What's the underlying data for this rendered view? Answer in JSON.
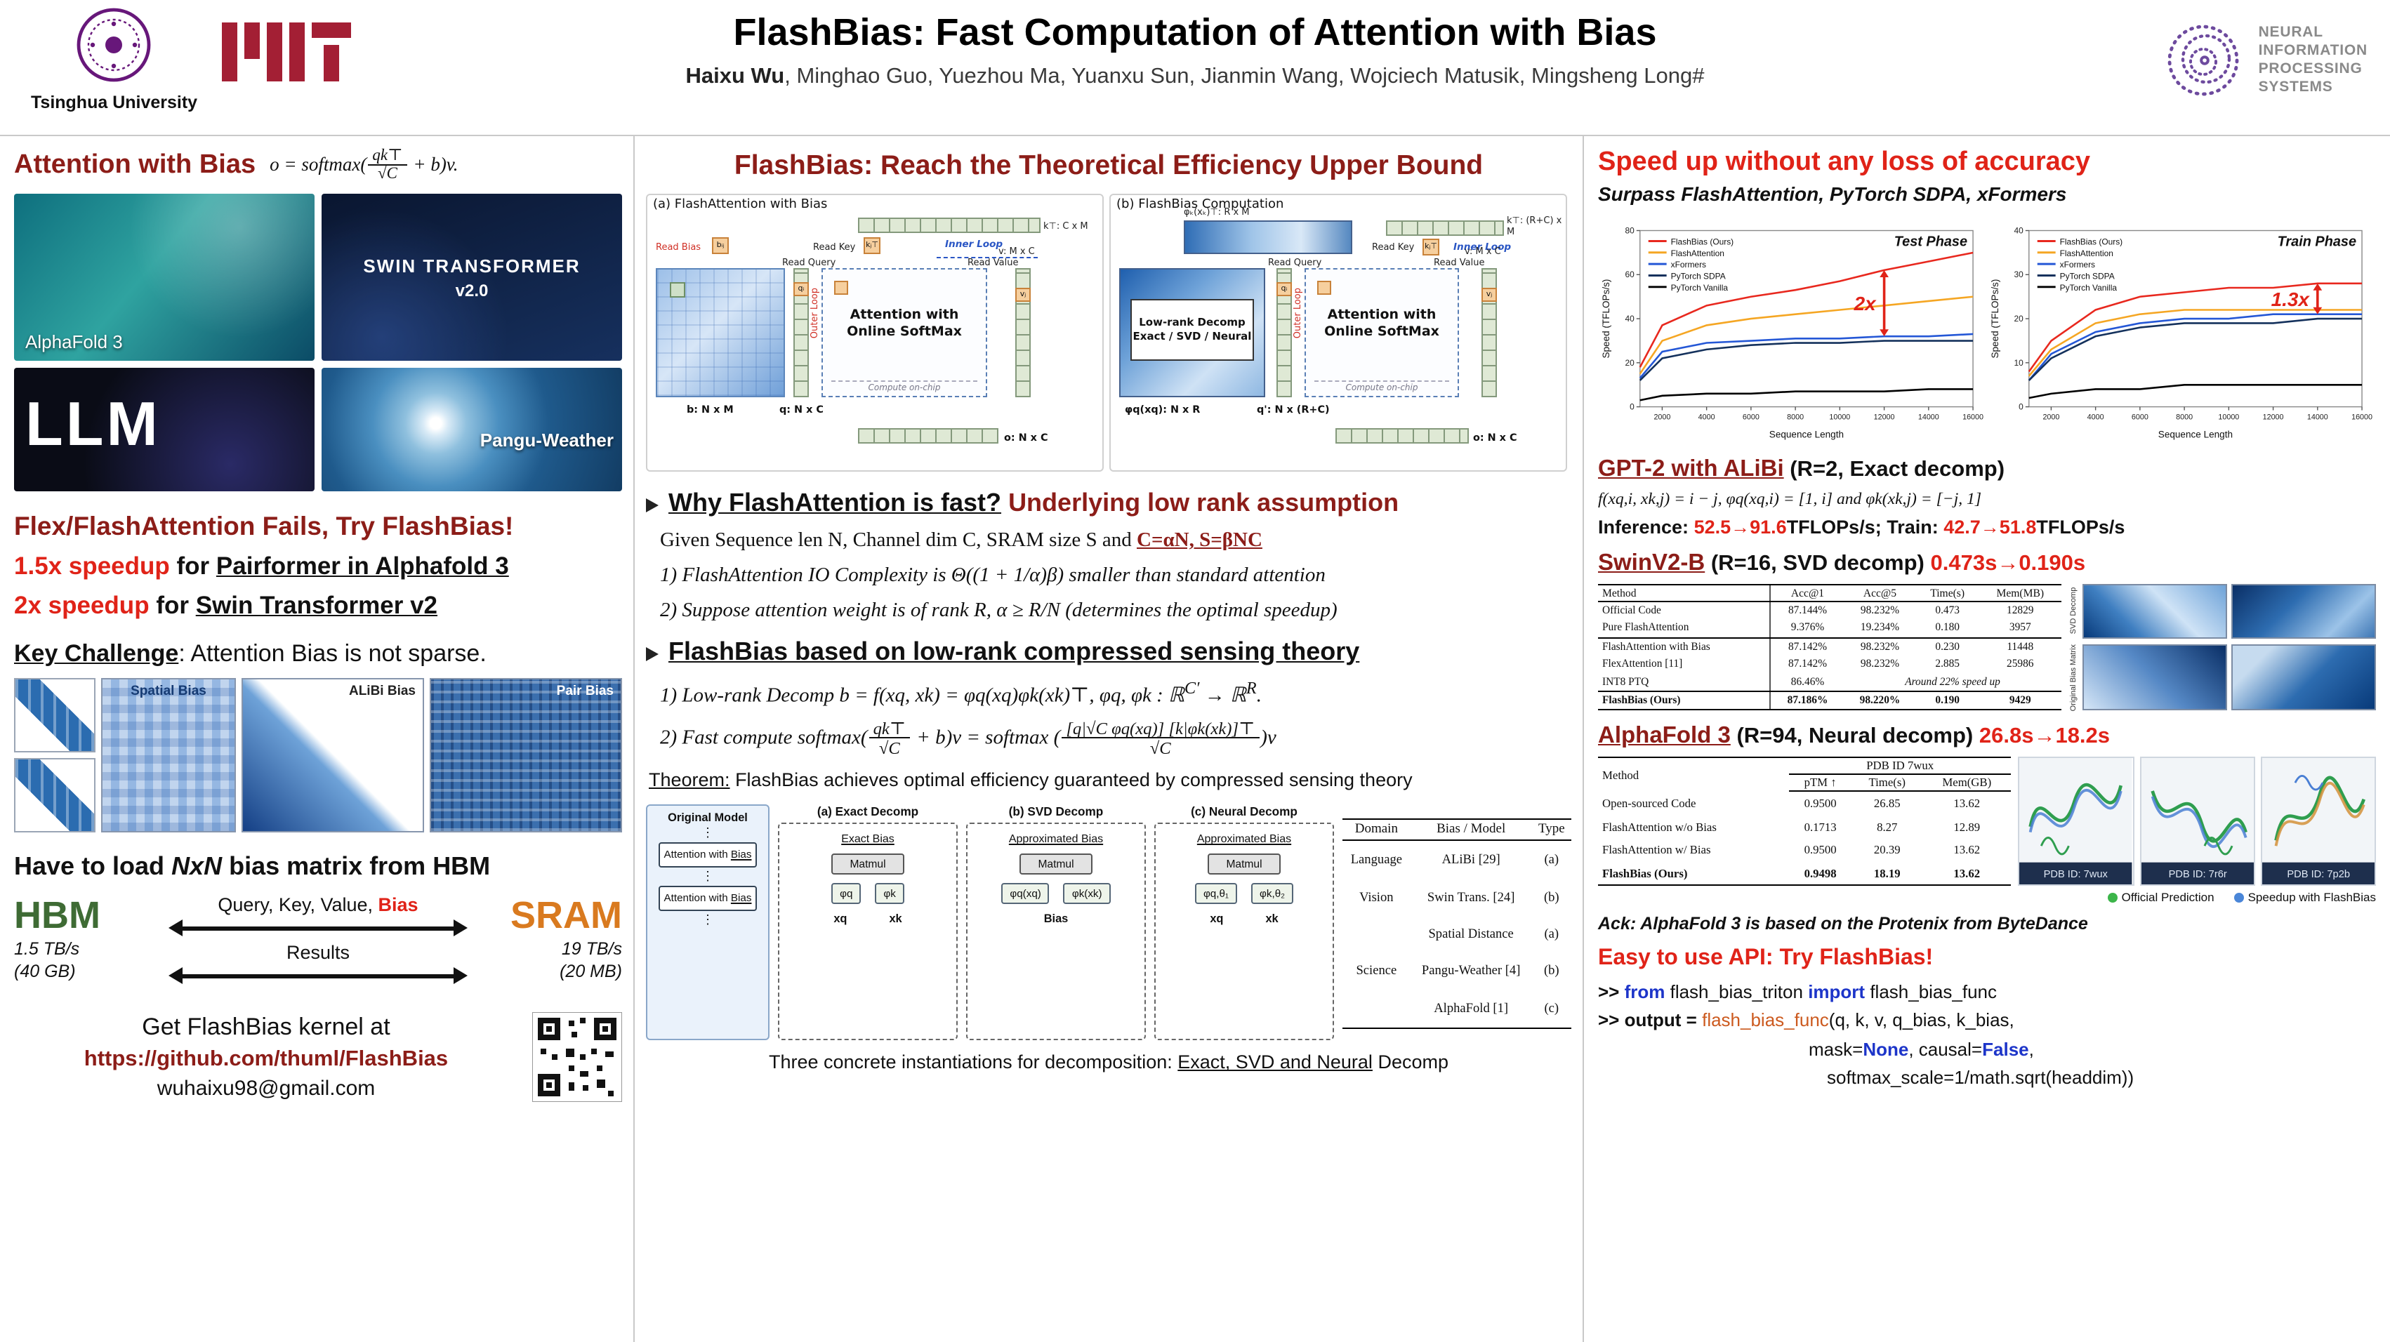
{
  "colors": {
    "maroon": "#8C1D18",
    "red": "#E02318",
    "keyword_blue": "#1D35C9",
    "function_orange": "#CC5A1F",
    "hbm_green": "#3E6B34",
    "sram_orange": "#D97A1F",
    "matrix_blue": "#2B6CB0"
  },
  "header": {
    "title": "FlashBias: Fast Computation of Attention with Bias",
    "author_lead": "Haixu Wu",
    "author_rest": ", Minghao Guo, Yuezhou Ma, Yuanxu Sun, Jianmin Wang, Wojciech Matusik, Mingsheng Long#",
    "tsinghua_label": "Tsinghua University",
    "neurips_lines": [
      "NEURAL",
      "INFORMATION",
      "PROCESSING",
      "SYSTEMS"
    ]
  },
  "left": {
    "sec1_title": "Attention with Bias",
    "formula": {
      "pre": "o = softmax(",
      "num": "qk⊤",
      "den": "√C",
      "post": " + b)v."
    },
    "tiles": {
      "alphafold": "AlphaFold 3",
      "swin1": "SWIN TRANSFORMER",
      "swin2": "v2.0",
      "llm": "LLM",
      "pangu": "Pangu-Weather"
    },
    "fails": "Flex/FlashAttention Fails, Try FlashBias!",
    "speedup1": {
      "lead": "1.5x speedup",
      "mid": " for ",
      "target": "Pairformer in Alphafold 3"
    },
    "speedup2": {
      "lead": "2x speedup",
      "mid": " for ",
      "target": "Swin Transformer v2"
    },
    "challenge": {
      "lead": "Key Challenge",
      "rest": ": Attention Bias is not sparse."
    },
    "bias_labels": {
      "spatial": "Spatial Bias",
      "alibi": "ALiBi Bias",
      "pair": "Pair Bias"
    },
    "load_line": {
      "pre": "Have to load ",
      "em": "NxN",
      "post": " bias matrix from HBM"
    },
    "hbm": {
      "name": "HBM",
      "speed": "1.5 TB/s",
      "size": "(40 GB)"
    },
    "sram": {
      "name": "SRAM",
      "speed": "19 TB/s",
      "size": "(20 MB)"
    },
    "transfer": {
      "pre": "Query, Key, Value, ",
      "bias": "Bias",
      "results": "Results"
    },
    "kernel": {
      "line": "Get FlashBias kernel at",
      "url": "https://github.com/thuml/FlashBias",
      "email": "wuhaixu98@gmail.com"
    }
  },
  "middle": {
    "heading": "FlashBias: Reach the Theoretical Efficiency Upper Bound",
    "diag_a": {
      "title": "(a) FlashAttention with Bias",
      "read_bias": "Read Bias",
      "bij": "bᵢⱼ",
      "read_key": "Read Key",
      "kj": "kⱼ⊤",
      "k_label": "k⊤: C x M",
      "inner_loop": "Inner Loop",
      "v_label": "v: M x C",
      "qi": "qᵢ",
      "read_query": "Read Query",
      "attn": "Attention with Online SoftMax",
      "read_value": "Read Value",
      "vj": "vⱼ",
      "outer_loop": "Outer Loop",
      "compute": "Compute on-chip",
      "b_label": "b: N x M",
      "q_label": "q: N x C",
      "o_label": "o: N x C"
    },
    "diag_b": {
      "title": "(b) FlashBias Computation",
      "phik_label": "φₖ(xₖ)⊤: R x M",
      "k_label": "k⊤: (R+C) x M",
      "read_key": "Read Key",
      "kj": "kⱼ⊤",
      "inner_loop": "Inner Loop",
      "v_label": "v: M x C",
      "decomp1": "Low-rank Decomp",
      "decomp2": "Exact / SVD / Neural",
      "qi": "qᵢ",
      "read_query": "Read Query",
      "attn": "Attention with Online SoftMax",
      "read_value": "Read Value",
      "vj": "vⱼ",
      "outer_loop": "Outer Loop",
      "compute": "Compute on-chip",
      "phiq_label": "φq(xq): N x R",
      "q_label": "q': N x (R+C)",
      "o_label": "o: N x C"
    },
    "why": {
      "title_black": "Why FlashAttention is fast?",
      "title_red": "Underlying low rank assumption",
      "given_pre": "Given Sequence len N, Channel dim C, SRAM size S and ",
      "given_u": "C=αN, S=βNC",
      "p1": "1) FlashAttention IO Complexity is Θ((1 + 1/α)β) smaller than standard attention",
      "p2": "2) Suppose attention weight is of rank R, α ≥ R/N (determines the optimal speedup)"
    },
    "theory": {
      "title": "FlashBias based on low-rank compressed sensing theory",
      "l1_pre": "1) Low-rank Decomp  b = f(xq, xk) = φq(xq)φk(xk)⊤,   φq, φk : ℝ",
      "l1_sup1": "C′",
      "l1_mid": " → ℝ",
      "l1_sup2": "R",
      "l1_end": ".",
      "l2_lead": "2) Fast compute   softmax(",
      "l2_num1": "qk⊤",
      "l2_den1": "√C",
      "l2_mid": " + b)v = softmax (",
      "l2_num2": "[q|√C φq(xq)] [k|φk(xk)]⊤",
      "l2_den2": "√C",
      "l2_end": ")v",
      "theorem_lead": "Theorem:",
      "theorem_rest": " FlashBias achieves optimal efficiency guaranteed by compressed sensing theory"
    },
    "decomp": {
      "original_label": "Original Model",
      "dots": "⋮",
      "attn_pre": "Attention with ",
      "attn_u": "Bias",
      "a": {
        "title": "(a) Exact Decomp",
        "bias": "Exact Bias",
        "matmul": "Matmul",
        "op1": "φq",
        "op2": "φk",
        "in1": "xq",
        "in2": "xk"
      },
      "b": {
        "title": "(b) SVD Decomp",
        "bias": "Approximated Bias",
        "matmul": "Matmul",
        "op1": "φq(xq)",
        "op2": "φk(xk)",
        "in1": "Bias"
      },
      "c": {
        "title": "(c) Neural Decomp",
        "bias": "Approximated Bias",
        "matmul": "Matmul",
        "op1": "φq,θ₁",
        "op2": "φk,θ₂",
        "in1": "xq",
        "in2": "xk"
      },
      "table": {
        "h": [
          "Domain",
          "Bias / Model",
          "Type"
        ],
        "rows": [
          [
            "Language",
            "ALiBi [29]",
            "(a)"
          ],
          [
            "Vision",
            "Swin Trans. [24]",
            "(b)"
          ],
          [
            "",
            "Spatial Distance",
            "(a)"
          ],
          [
            "Science",
            "Pangu-Weather [4]",
            "(b)"
          ],
          [
            "",
            "AlphaFold [1]",
            "(c)"
          ]
        ]
      },
      "caption": {
        "pre": "Three concrete instantiations for decomposition: ",
        "u": "Exact, SVD and Neural",
        "post": " Decomp"
      }
    }
  },
  "right": {
    "speed_title": "Speed up without any loss of accuracy",
    "speed_sub": "Surpass FlashAttention, PyTorch SDPA, xFormers",
    "gpt2": {
      "title_u": "GPT-2 with ALiBi",
      "title_rest": " (R=2, Exact decomp)",
      "formula": "f(xq,i, xk,j) = i − j,   φq(xq,i) = [1, i] and φk(xk,j) = [−j, 1]",
      "inf_label": "Inference: ",
      "inf_val": "52.5→91.6",
      "inf_unit": "TFLOPs/s; ",
      "train_label": "Train: ",
      "train_val": "42.7→51.8",
      "train_unit": "TFLOPs/s"
    },
    "swin": {
      "title_u": "SwinV2-B",
      "title_mid": " (R=16, SVD decomp) ",
      "title_red": "0.473s→0.190s",
      "table": {
        "h": [
          "Method",
          "Acc@1",
          "Acc@5",
          "Time(s)",
          "Mem(MB)"
        ],
        "rows": [
          [
            "Official Code",
            "87.144%",
            "98.232%",
            "0.473",
            "12829"
          ],
          [
            "Pure FlashAttention",
            "9.376%",
            "19.234%",
            "0.180",
            "3957"
          ],
          [
            "FlashAttention with Bias",
            "87.142%",
            "98.232%",
            "0.230",
            "11448"
          ],
          [
            "FlexAttention [11]",
            "87.142%",
            "98.232%",
            "2.885",
            "25986"
          ],
          [
            "INT8 PTQ",
            "86.46%",
            "Around 22% speed up",
            "",
            ""
          ],
          [
            "FlashBias (Ours)",
            "87.186%",
            "98.220%",
            "0.190",
            "9429"
          ]
        ]
      },
      "matrix_label_top": "SVD Decomp",
      "matrix_label_bottom": "Original Bias Matrix"
    },
    "af3": {
      "title_u": "AlphaFold 3",
      "title_mid": " (R=94, Neural decomp) ",
      "title_red": "26.8s→18.2s",
      "table": {
        "method_h": "Method",
        "group_h": "PDB ID 7wux",
        "sub_h": [
          "pTM ↑",
          "Time(s)",
          "Mem(GB)"
        ],
        "rows": [
          [
            "Open-sourced Code",
            "0.9500",
            "26.85",
            "13.62"
          ],
          [
            "FlashAttention w/o Bias",
            "0.1713",
            "8.27",
            "12.89"
          ],
          [
            "FlashAttention w/ Bias",
            "0.9500",
            "20.39",
            "13.62"
          ],
          [
            "FlashBias (Ours)",
            "0.9498",
            "18.19",
            "13.62"
          ]
        ]
      },
      "pdb_labels": [
        "PDB ID: 7wux",
        "PDB ID: 7r6r",
        "PDB ID: 7p2b"
      ],
      "legend_official": "Official Prediction",
      "legend_flashbias": "Speedup with FlashBias",
      "ack": "Ack: AlphaFold 3 is based on the Protenix from ByteDance"
    },
    "api": {
      "title": "Easy to use API: Try FlashBias!",
      "l1": {
        "p1": ">> ",
        "kw1": "from",
        "p2": " flash_bias_triton ",
        "kw2": "import",
        "p3": " flash_bias_func"
      },
      "l2": {
        "p1": ">> output = ",
        "fn": "flash_bias_func",
        "p2": "(q, k, v, q_bias, k_bias,"
      },
      "l3": {
        "p1": "mask=",
        "kw1": "None",
        "p2": ", causal=",
        "kw2": "False",
        "p3": ","
      },
      "l4": {
        "p1": "softmax_scale=1/math.sqrt(headdim))"
      }
    }
  },
  "chart_data": [
    {
      "type": "line",
      "title": "Test Phase",
      "xlabel": "Sequence Length",
      "ylabel": "Speed (TFLOPs/s)",
      "x": [
        1000,
        2000,
        4000,
        6000,
        8000,
        10000,
        12000,
        14000,
        16000
      ],
      "xticks": [
        2000,
        4000,
        6000,
        8000,
        10000,
        12000,
        14000,
        16000
      ],
      "ylim": [
        0,
        80
      ],
      "yticks": [
        0,
        20,
        40,
        60,
        80
      ],
      "legend_position": "top-left",
      "annotation": "2x",
      "ann_idx": 6,
      "ann_to": 2,
      "series": [
        {
          "name": "FlashBias (Ours)",
          "color": "#e8281e",
          "values": [
            18,
            37,
            46,
            50,
            53,
            57,
            62,
            66,
            70
          ]
        },
        {
          "name": "FlashAttention",
          "color": "#f5a623",
          "values": [
            15,
            30,
            37,
            40,
            42,
            44,
            46,
            48,
            50
          ]
        },
        {
          "name": "xFormers",
          "color": "#2457d6",
          "values": [
            13,
            25,
            29,
            30,
            31,
            31,
            32,
            32,
            33
          ]
        },
        {
          "name": "PyTorch SDPA",
          "color": "#14315c",
          "values": [
            12,
            22,
            26,
            28,
            29,
            29,
            30,
            30,
            30
          ]
        },
        {
          "name": "PyTorch Vanilla",
          "color": "#000000",
          "values": [
            3,
            5,
            6,
            6,
            7,
            7,
            7,
            8,
            8
          ]
        }
      ]
    },
    {
      "type": "line",
      "title": "Train Phase",
      "xlabel": "Sequence Length",
      "ylabel": "Speed (TFLOPs/s)",
      "x": [
        1000,
        2000,
        4000,
        6000,
        8000,
        10000,
        12000,
        14000,
        16000
      ],
      "xticks": [
        2000,
        4000,
        6000,
        8000,
        10000,
        12000,
        14000,
        16000
      ],
      "ylim": [
        0,
        40
      ],
      "yticks": [
        0,
        10,
        20,
        30,
        40
      ],
      "legend_position": "top-left",
      "annotation": "1.3x",
      "ann_idx": 7,
      "ann_to": 2,
      "series": [
        {
          "name": "FlashBias (Ours)",
          "color": "#e8281e",
          "values": [
            8,
            15,
            22,
            25,
            26,
            27,
            27,
            28,
            28
          ]
        },
        {
          "name": "FlashAttention",
          "color": "#f5a623",
          "values": [
            7,
            13,
            19,
            21,
            22,
            22,
            22,
            22,
            22
          ]
        },
        {
          "name": "xFormers",
          "color": "#2457d6",
          "values": [
            6,
            12,
            17,
            19,
            20,
            20,
            21,
            21,
            21
          ]
        },
        {
          "name": "PyTorch SDPA",
          "color": "#14315c",
          "values": [
            6,
            11,
            16,
            18,
            19,
            19,
            19,
            20,
            20
          ]
        },
        {
          "name": "PyTorch Vanilla",
          "color": "#000000",
          "values": [
            2,
            3,
            4,
            4,
            5,
            5,
            5,
            5,
            5
          ]
        }
      ]
    }
  ]
}
